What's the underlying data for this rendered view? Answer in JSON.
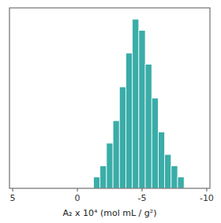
{
  "chart_data": {
    "type": "bar",
    "x_label": "A₂  x  10⁴  (mol mL / g²)",
    "x": [
      -1.5,
      -2.0,
      -2.5,
      -3.0,
      -3.5,
      -4.0,
      -4.5,
      -5.0,
      -5.5,
      -6.0,
      -6.5,
      -7.0,
      -7.5,
      -8.0
    ],
    "values": [
      1,
      2,
      4,
      6,
      9,
      12,
      15,
      14,
      11,
      8,
      5,
      3,
      2,
      1
    ],
    "color": "#3aada8",
    "xlim": [
      5.25,
      -10.25
    ],
    "ylim": [
      0,
      16
    ],
    "xticks": [
      5,
      0,
      -5,
      -10
    ],
    "yticks": [],
    "tick_labels": "x",
    "grid": false
  }
}
